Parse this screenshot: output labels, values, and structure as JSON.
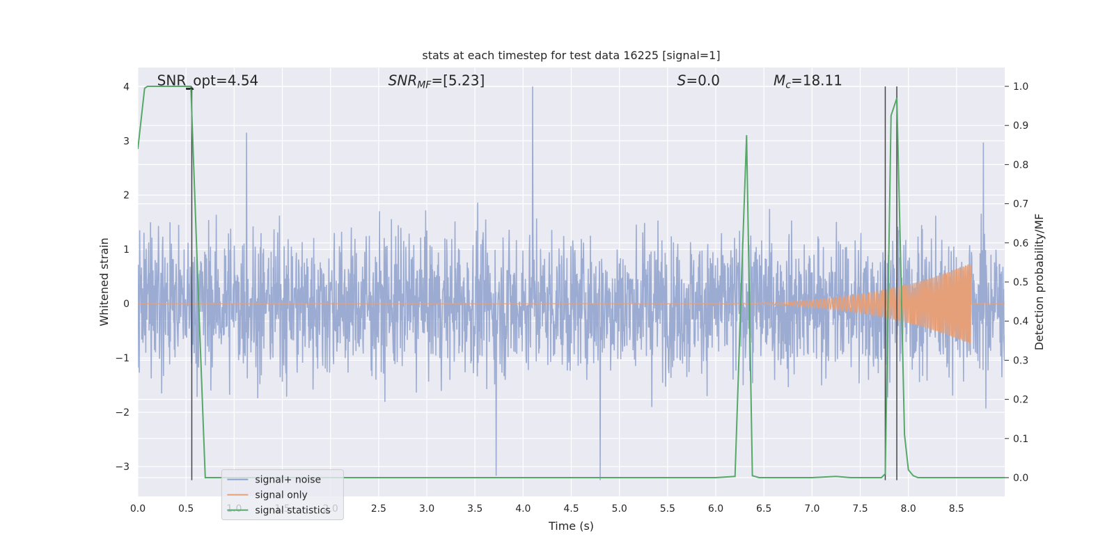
{
  "chart_data": {
    "type": "line",
    "title": "stats at each timestep for test data 16225 [signal=1]",
    "xlabel": "Time (s)",
    "ylabel": "Whitened strain",
    "y2label": "Detection probability/MF",
    "xlim": [
      0.0,
      9.0
    ],
    "ylim": [
      -3.55,
      4.35
    ],
    "y2lim": [
      -0.048,
      1.048
    ],
    "x_ticks": [
      "0.0",
      "0.5",
      "1.0",
      "1.5",
      "2.0",
      "2.5",
      "3.0",
      "3.5",
      "4.0",
      "4.5",
      "5.0",
      "5.5",
      "6.0",
      "6.5",
      "7.0",
      "7.5",
      "8.0",
      "8.5"
    ],
    "y_ticks": [
      "4",
      "3",
      "2",
      "1",
      "0",
      "−1",
      "−2",
      "−3"
    ],
    "y2_ticks": [
      "1.0",
      "0.9",
      "0.8",
      "0.7",
      "0.6",
      "0.5",
      "0.4",
      "0.3",
      "0.2",
      "0.1",
      "0.0"
    ],
    "grid": true,
    "legend_position": "bottom-left",
    "annotations": {
      "snr_opt": "SNR_opt=4.54",
      "snr_mf_main": "SNR",
      "snr_mf_sub": "MF",
      "snr_mf_value": "=[5.23]",
      "s_main": "S",
      "s_value": "=0.0",
      "mc_main": "M",
      "mc_sub": "c",
      "mc_value": "=18.11"
    },
    "vlines_x": [
      0.56,
      7.76,
      7.88
    ],
    "series": [
      {
        "name": "signal+ noise",
        "color": "#8da0cb",
        "axis": "left",
        "description_envelope": {
          "x_range": [
            0.0,
            9.0
          ],
          "typical_amplitude": 1.1,
          "notable_peaks": [
            [
              0.13,
              1.5
            ],
            [
              1.13,
              3.15
            ],
            [
              4.1,
              4.0
            ],
            [
              4.8,
              -3.25
            ],
            [
              3.72,
              -3.17
            ],
            [
              8.78,
              2.97
            ]
          ]
        }
      },
      {
        "name": "signal only",
        "color": "#e5a07a",
        "axis": "left",
        "chirp": {
          "start": 5.5,
          "end": 8.65,
          "peak_amplitude": 0.75
        }
      },
      {
        "name": "signal statistics",
        "color": "#55a868",
        "axis": "right",
        "x": [
          0.0,
          0.07,
          0.1,
          0.2,
          0.3,
          0.4,
          0.5,
          0.55,
          0.62,
          0.7,
          1.0,
          2.0,
          3.0,
          4.0,
          5.0,
          6.0,
          6.2,
          6.27,
          6.32,
          6.38,
          6.45,
          6.6,
          7.0,
          7.25,
          7.4,
          7.72,
          7.76,
          7.82,
          7.88,
          7.92,
          7.96,
          8.0,
          8.05,
          8.1,
          8.2,
          8.5,
          9.0
        ],
        "y": [
          0.84,
          0.995,
          1.0,
          1.0,
          1.0,
          1.0,
          1.0,
          1.0,
          0.52,
          0.0,
          0.0,
          0.0,
          0.0,
          0.0,
          0.0,
          0.0,
          0.003,
          0.52,
          0.875,
          0.005,
          0.0,
          0.0,
          0.0,
          0.003,
          0.0,
          0.0,
          0.01,
          0.925,
          0.97,
          0.55,
          0.11,
          0.02,
          0.005,
          0.0,
          0.0,
          0.0,
          0.0
        ]
      }
    ]
  }
}
